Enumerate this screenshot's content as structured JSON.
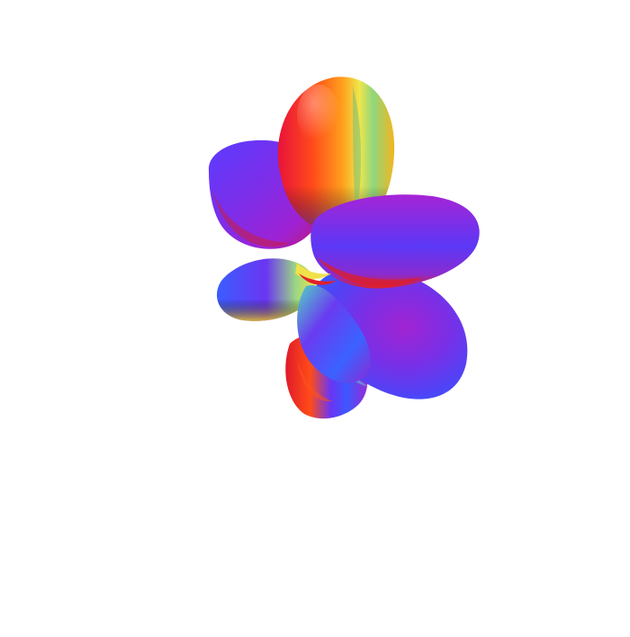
{
  "figure": {
    "background": "#ffffff",
    "subject": "spherical-harmonic-surface",
    "colormap": [
      "#ff1f1f",
      "#ff8a1c",
      "#f6e64a",
      "#9ee07b",
      "#4fd7d6",
      "#3b6bff",
      "#6a2cff",
      "#b21dd6"
    ],
    "lobe_count_visible": 6,
    "shading": "smooth-3d"
  }
}
